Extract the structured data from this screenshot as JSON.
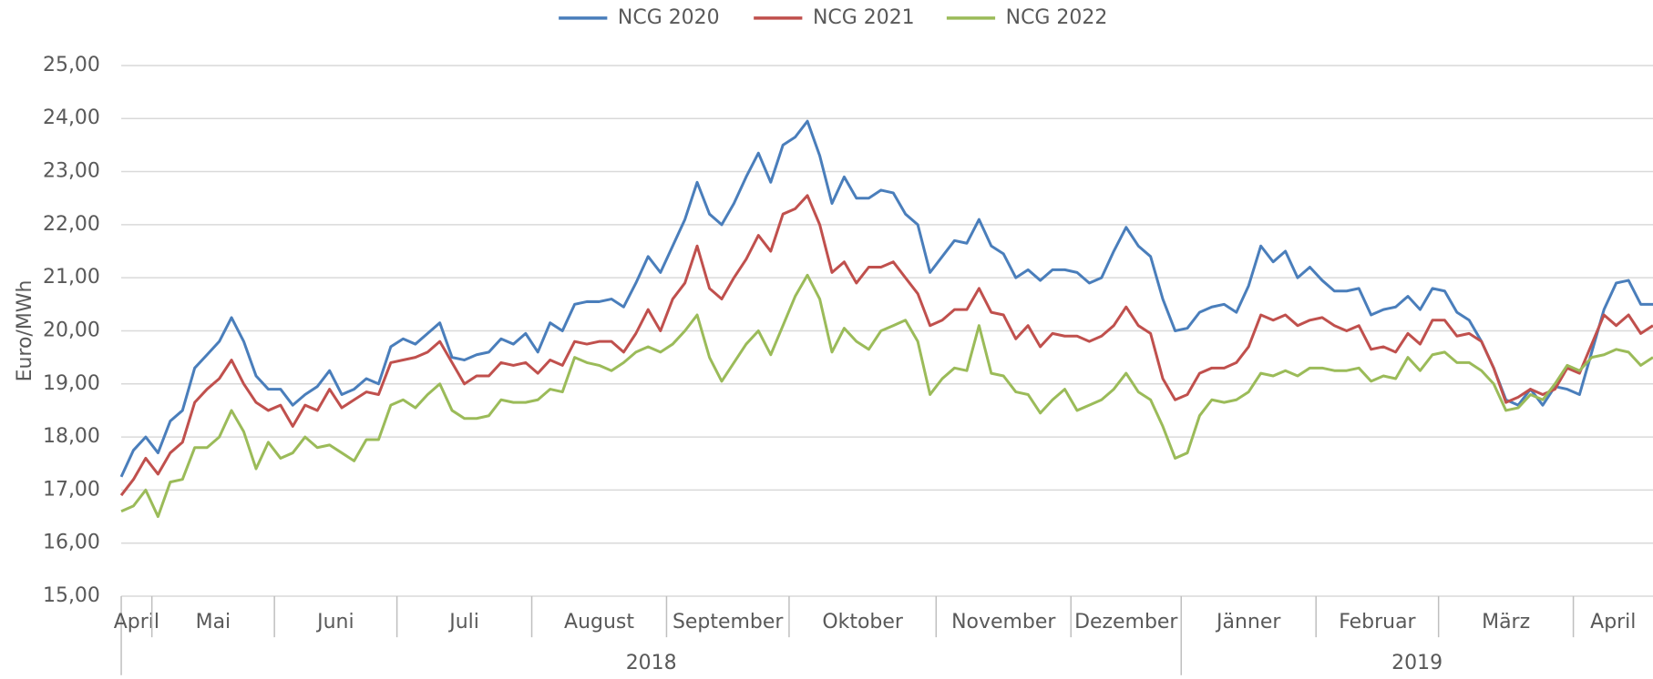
{
  "chart_data": {
    "type": "line",
    "y_label": "Euro/MWh",
    "categories": [
      "April",
      null,
      null,
      "Mai",
      null,
      null,
      null,
      null,
      null,
      null,
      null,
      null,
      null,
      "Juni",
      null,
      null,
      null,
      null,
      null,
      null,
      null,
      null,
      null,
      "Juli",
      null,
      null,
      null,
      null,
      null,
      null,
      null,
      null,
      null,
      null,
      "August",
      null,
      null,
      null,
      null,
      null,
      null,
      null,
      null,
      null,
      null,
      "September",
      null,
      null,
      null,
      null,
      null,
      null,
      null,
      null,
      null,
      "Oktober",
      null,
      null,
      null,
      null,
      null,
      null,
      null,
      null,
      null,
      null,
      null,
      "November",
      null,
      null,
      null,
      null,
      null,
      null,
      null,
      null,
      null,
      null,
      "Dezember",
      null,
      null,
      null,
      null,
      null,
      null,
      null,
      null,
      "Jänner",
      null,
      null,
      null,
      null,
      null,
      null,
      null,
      null,
      null,
      null,
      "Februar",
      null,
      null,
      null,
      null,
      null,
      null,
      null,
      null,
      null,
      "März",
      null,
      null,
      null,
      null,
      null,
      null,
      null,
      null,
      null,
      null,
      "April",
      null,
      null,
      null,
      null,
      null,
      null
    ],
    "x_groups": [
      "2018",
      "2019"
    ],
    "series": [
      {
        "name": "NCG 2020",
        "color": "#4a7ebb",
        "values": [
          17.25,
          17.75,
          18.0,
          17.7,
          18.3,
          18.5,
          19.3,
          19.55,
          19.8,
          20.25,
          19.8,
          19.15,
          18.9,
          18.9,
          18.6,
          18.8,
          18.95,
          19.25,
          18.8,
          18.9,
          19.1,
          19.0,
          19.7,
          19.85,
          19.75,
          19.95,
          20.15,
          19.5,
          19.45,
          19.55,
          19.6,
          19.85,
          19.75,
          19.95,
          19.6,
          20.15,
          20.0,
          20.5,
          20.55,
          20.55,
          20.6,
          20.45,
          20.9,
          21.4,
          21.1,
          21.6,
          22.1,
          22.8,
          22.2,
          22.0,
          22.4,
          22.9,
          23.35,
          22.8,
          23.5,
          23.65,
          23.95,
          23.3,
          22.4,
          22.9,
          22.5,
          22.5,
          22.65,
          22.6,
          22.2,
          22.0,
          21.1,
          21.4,
          21.7,
          21.65,
          22.1,
          21.6,
          21.45,
          21.0,
          21.15,
          20.95,
          21.15,
          21.15,
          21.1,
          20.9,
          21.0,
          21.5,
          21.95,
          21.6,
          21.4,
          20.6,
          20.0,
          20.05,
          20.35,
          20.45,
          20.5,
          20.35,
          20.85,
          21.6,
          21.3,
          21.5,
          21.0,
          21.2,
          20.95,
          20.75,
          20.75,
          20.8,
          20.3,
          20.4,
          20.45,
          20.65,
          20.4,
          20.8,
          20.75,
          20.35,
          20.2,
          19.8,
          19.3,
          18.7,
          18.6,
          18.9,
          18.6,
          18.95,
          18.9,
          18.8,
          19.6,
          20.4,
          20.9,
          20.95,
          20.5,
          20.5
        ]
      },
      {
        "name": "NCG 2021",
        "color": "#c0504d",
        "values": [
          16.9,
          17.2,
          17.6,
          17.3,
          17.7,
          17.9,
          18.65,
          18.9,
          19.1,
          19.45,
          19.0,
          18.65,
          18.5,
          18.6,
          18.2,
          18.6,
          18.5,
          18.9,
          18.55,
          18.7,
          18.85,
          18.8,
          19.4,
          19.45,
          19.5,
          19.6,
          19.8,
          19.4,
          19.0,
          19.15,
          19.15,
          19.4,
          19.35,
          19.4,
          19.2,
          19.45,
          19.35,
          19.8,
          19.75,
          19.8,
          19.8,
          19.6,
          19.95,
          20.4,
          20.0,
          20.6,
          20.9,
          21.6,
          20.8,
          20.6,
          21.0,
          21.35,
          21.8,
          21.5,
          22.2,
          22.3,
          22.55,
          22.0,
          21.1,
          21.3,
          20.9,
          21.2,
          21.2,
          21.3,
          21.0,
          20.7,
          20.1,
          20.2,
          20.4,
          20.4,
          20.8,
          20.35,
          20.3,
          19.85,
          20.1,
          19.7,
          19.95,
          19.9,
          19.9,
          19.8,
          19.9,
          20.1,
          20.45,
          20.1,
          19.95,
          19.1,
          18.7,
          18.8,
          19.2,
          19.3,
          19.3,
          19.4,
          19.7,
          20.3,
          20.2,
          20.3,
          20.1,
          20.2,
          20.25,
          20.1,
          20.0,
          20.1,
          19.65,
          19.7,
          19.6,
          19.95,
          19.75,
          20.2,
          20.2,
          19.9,
          19.95,
          19.8,
          19.3,
          18.65,
          18.75,
          18.9,
          18.8,
          18.9,
          19.3,
          19.2,
          19.75,
          20.3,
          20.1,
          20.3,
          19.95,
          20.1
        ]
      },
      {
        "name": "NCG 2022",
        "color": "#9bbb59",
        "values": [
          16.6,
          16.7,
          17.0,
          16.5,
          17.15,
          17.2,
          17.8,
          17.8,
          18.0,
          18.5,
          18.1,
          17.4,
          17.9,
          17.6,
          17.7,
          18.0,
          17.8,
          17.85,
          17.7,
          17.55,
          17.95,
          17.95,
          18.6,
          18.7,
          18.55,
          18.8,
          19.0,
          18.5,
          18.35,
          18.35,
          18.4,
          18.7,
          18.65,
          18.65,
          18.7,
          18.9,
          18.85,
          19.5,
          19.4,
          19.35,
          19.25,
          19.4,
          19.6,
          19.7,
          19.6,
          19.75,
          20.0,
          20.3,
          19.5,
          19.05,
          19.4,
          19.75,
          20.0,
          19.55,
          20.1,
          20.65,
          21.05,
          20.6,
          19.6,
          20.05,
          19.8,
          19.65,
          20.0,
          20.1,
          20.2,
          19.8,
          18.8,
          19.1,
          19.3,
          19.25,
          20.1,
          19.2,
          19.15,
          18.85,
          18.8,
          18.45,
          18.7,
          18.9,
          18.5,
          18.6,
          18.7,
          18.9,
          19.2,
          18.85,
          18.7,
          18.2,
          17.6,
          17.7,
          18.4,
          18.7,
          18.65,
          18.7,
          18.85,
          19.2,
          19.15,
          19.25,
          19.15,
          19.3,
          19.3,
          19.25,
          19.25,
          19.3,
          19.05,
          19.15,
          19.1,
          19.5,
          19.25,
          19.55,
          19.6,
          19.4,
          19.4,
          19.25,
          19.0,
          18.5,
          18.55,
          18.8,
          18.7,
          19.0,
          19.35,
          19.25,
          19.5,
          19.55,
          19.65,
          19.6,
          19.35,
          19.5
        ]
      }
    ],
    "ylim": [
      15,
      25
    ],
    "yticks": [
      {
        "value": 15,
        "label": "15,00"
      },
      {
        "value": 16,
        "label": "16,00"
      },
      {
        "value": 17,
        "label": "17,00"
      },
      {
        "value": 18,
        "label": "18,00"
      },
      {
        "value": 19,
        "label": "19,00"
      },
      {
        "value": 20,
        "label": "20,00"
      },
      {
        "value": 21,
        "label": "21,00"
      },
      {
        "value": 22,
        "label": "22,00"
      },
      {
        "value": 23,
        "label": "23,00"
      },
      {
        "value": 24,
        "label": "24,00"
      },
      {
        "value": 25,
        "label": "25,00"
      }
    ],
    "grid": true,
    "legend": "top"
  }
}
